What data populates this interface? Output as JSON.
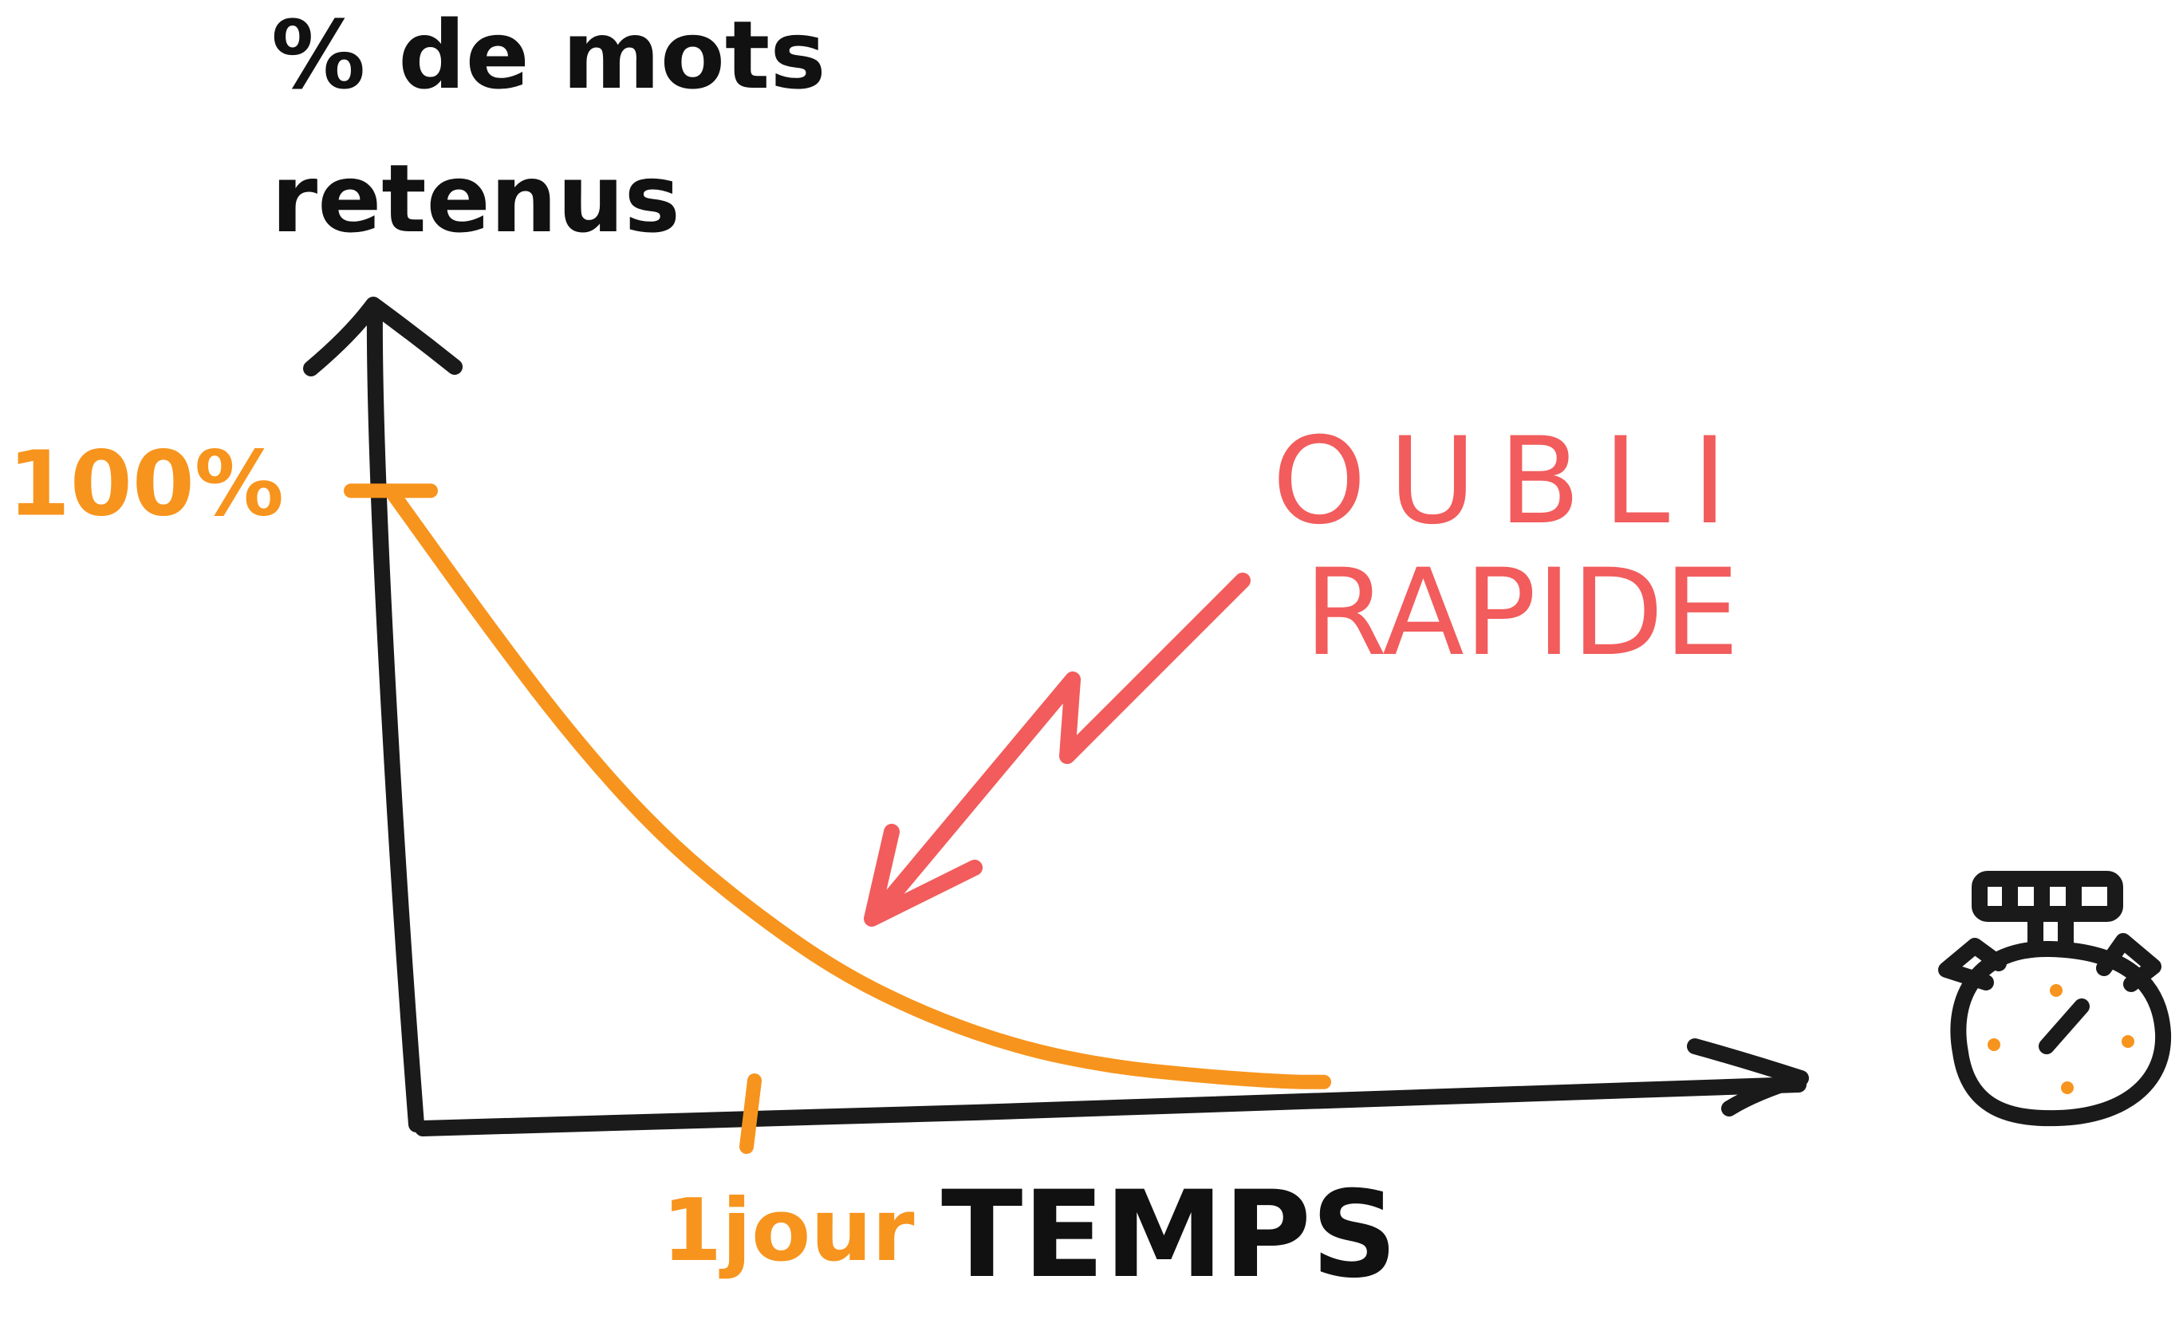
{
  "colors": {
    "axis": "#1a1a1a",
    "curve": "#f7941d",
    "annotation": "#f25c5c",
    "ink": "#111111"
  },
  "icons": {
    "timer": "stopwatch-icon"
  },
  "chart_data": {
    "type": "line",
    "ylabel_line1": "% de mots",
    "ylabel_line2": "retenus",
    "xlabel": "TEMPS",
    "y_tick_label": "100%",
    "x_tick_label": "1jour",
    "annotation_line1": "OUBLI",
    "annotation_line2": "RAPIDE",
    "x_tick_value": 1,
    "y_tick_value": 100,
    "xlim": [
      0,
      4
    ],
    "ylim": [
      0,
      130
    ],
    "grid": false,
    "legend": "none",
    "series": [
      {
        "values": [
          [
            0,
            100
          ],
          [
            0.25,
            80
          ],
          [
            0.5,
            61
          ],
          [
            0.75,
            45
          ],
          [
            1,
            33
          ],
          [
            1.25,
            23
          ],
          [
            1.5,
            16
          ],
          [
            1.75,
            11
          ],
          [
            2,
            8
          ],
          [
            2.25,
            6.5
          ],
          [
            2.5,
            5.5
          ],
          [
            2.6,
            5.5
          ]
        ]
      }
    ]
  }
}
